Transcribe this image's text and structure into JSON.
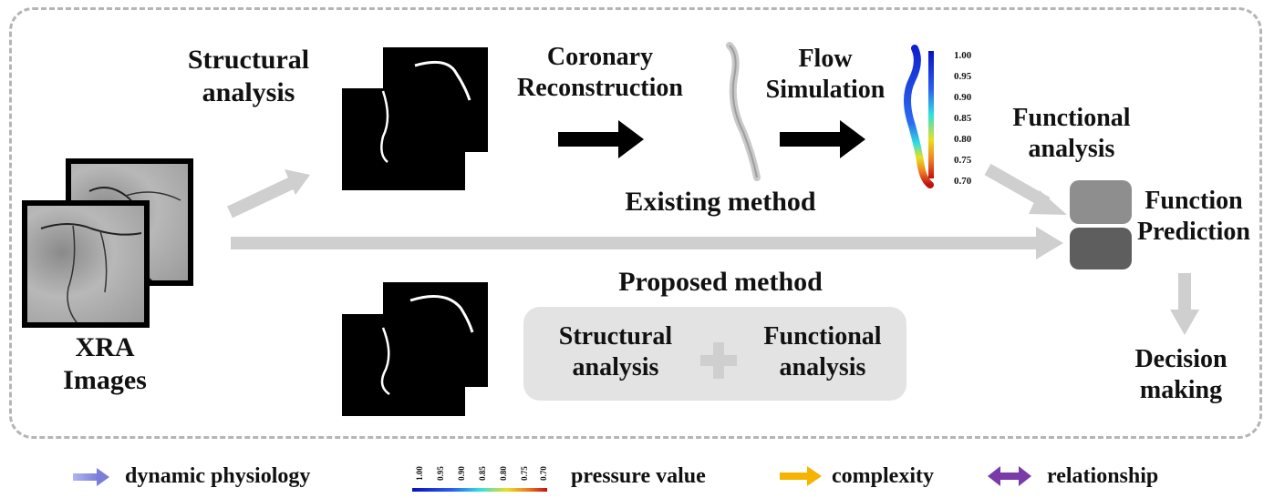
{
  "labels": {
    "structural_top": [
      "Structural",
      "analysis"
    ],
    "coronary": [
      "Coronary",
      "Reconstruction"
    ],
    "flow": [
      "Flow",
      "Simulation"
    ],
    "functional_top": [
      "Functional",
      "analysis"
    ],
    "function_prediction": [
      "Function",
      "Prediction"
    ],
    "existing_method": "Existing method",
    "proposed_method": "Proposed method",
    "xra": [
      "XRA",
      "Images"
    ],
    "combo_structural": [
      "Structural",
      "analysis"
    ],
    "combo_functional": [
      "Functional",
      "analysis"
    ],
    "decision": [
      "Decision",
      "making"
    ]
  },
  "colorbar_ticks": [
    "1.00",
    "0.95",
    "0.90",
    "0.85",
    "0.80",
    "0.75",
    "0.70"
  ],
  "legend": {
    "dynamic_physiology": "dynamic physiology",
    "pressure_value": "pressure value",
    "complexity": "complexity",
    "relationship": "relationship",
    "pressure_ticks": [
      "1.00",
      "0.95",
      "0.90",
      "0.85",
      "0.80",
      "0.75",
      "0.70"
    ]
  },
  "colors": {
    "frame": "#b5b5b5",
    "gray_arrow": "#cfcfcf",
    "black_arrow": "#000000",
    "dynamic_physiology": "#8a8ee0",
    "complexity": "#f5b400",
    "relationship": "#7a3aa8",
    "function_top": "#8e8e8e",
    "function_bottom": "#5e5e5e",
    "combo_bg": "#e3e3e3"
  }
}
